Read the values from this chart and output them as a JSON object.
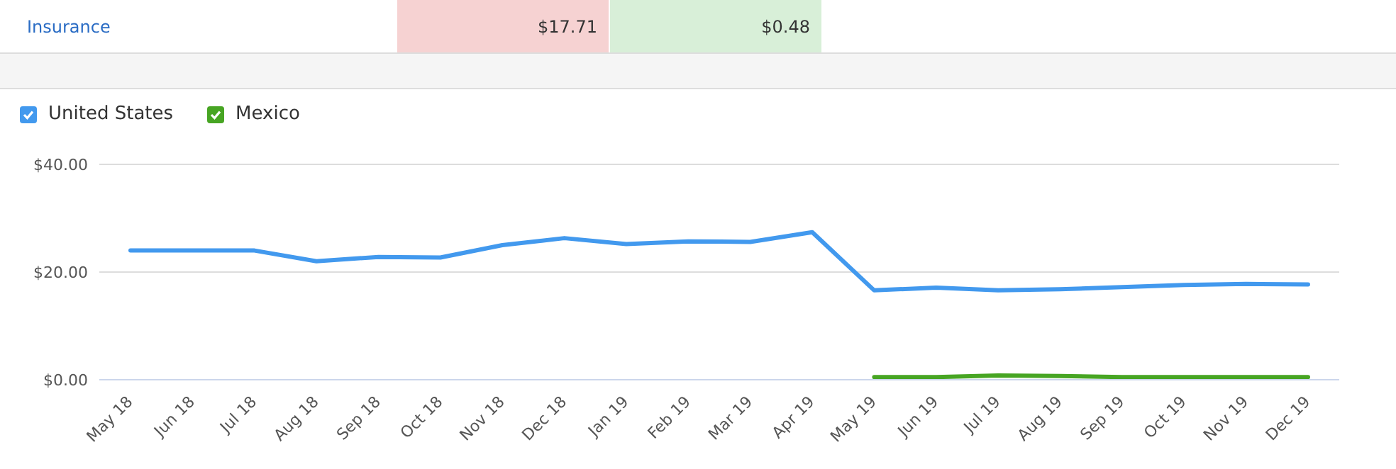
{
  "chart_data": {
    "type": "line",
    "annotations": [
      "Insurance",
      "$17.71",
      "$0.48"
    ],
    "categories": [
      "May 18",
      "Jun 18",
      "Jul 18",
      "Aug 18",
      "Sep 18",
      "Oct 18",
      "Nov 18",
      "Dec 18",
      "Jan 19",
      "Feb 19",
      "Mar 19",
      "Apr 19",
      "May 19",
      "Jun 19",
      "Jul 19",
      "Aug 19",
      "Sep 19",
      "Oct 19",
      "Nov 19",
      "Dec 19"
    ],
    "series": [
      {
        "name": "United States",
        "color": "#4299ee",
        "values": [
          24,
          24,
          24,
          22,
          22.8,
          22.7,
          25,
          26.3,
          25.2,
          25.7,
          25.6,
          27.4,
          16.6,
          17.1,
          16.6,
          16.8,
          17.2,
          17.6,
          17.8,
          17.7
        ]
      },
      {
        "name": "Mexico",
        "color": "#47a523",
        "values": [
          null,
          null,
          null,
          null,
          null,
          null,
          null,
          null,
          null,
          null,
          null,
          null,
          0.5,
          0.5,
          0.8,
          0.7,
          0.5,
          0.5,
          0.5,
          0.5
        ]
      }
    ],
    "ylim": [
      0,
      40
    ],
    "yticks": [
      {
        "value": 0,
        "label": "$0.00"
      },
      {
        "value": 20,
        "label": "$20.00"
      },
      {
        "value": 40,
        "label": "$40.00"
      }
    ],
    "grid": "y",
    "legend": "top left",
    "marker": "none",
    "line_style": "solid"
  }
}
